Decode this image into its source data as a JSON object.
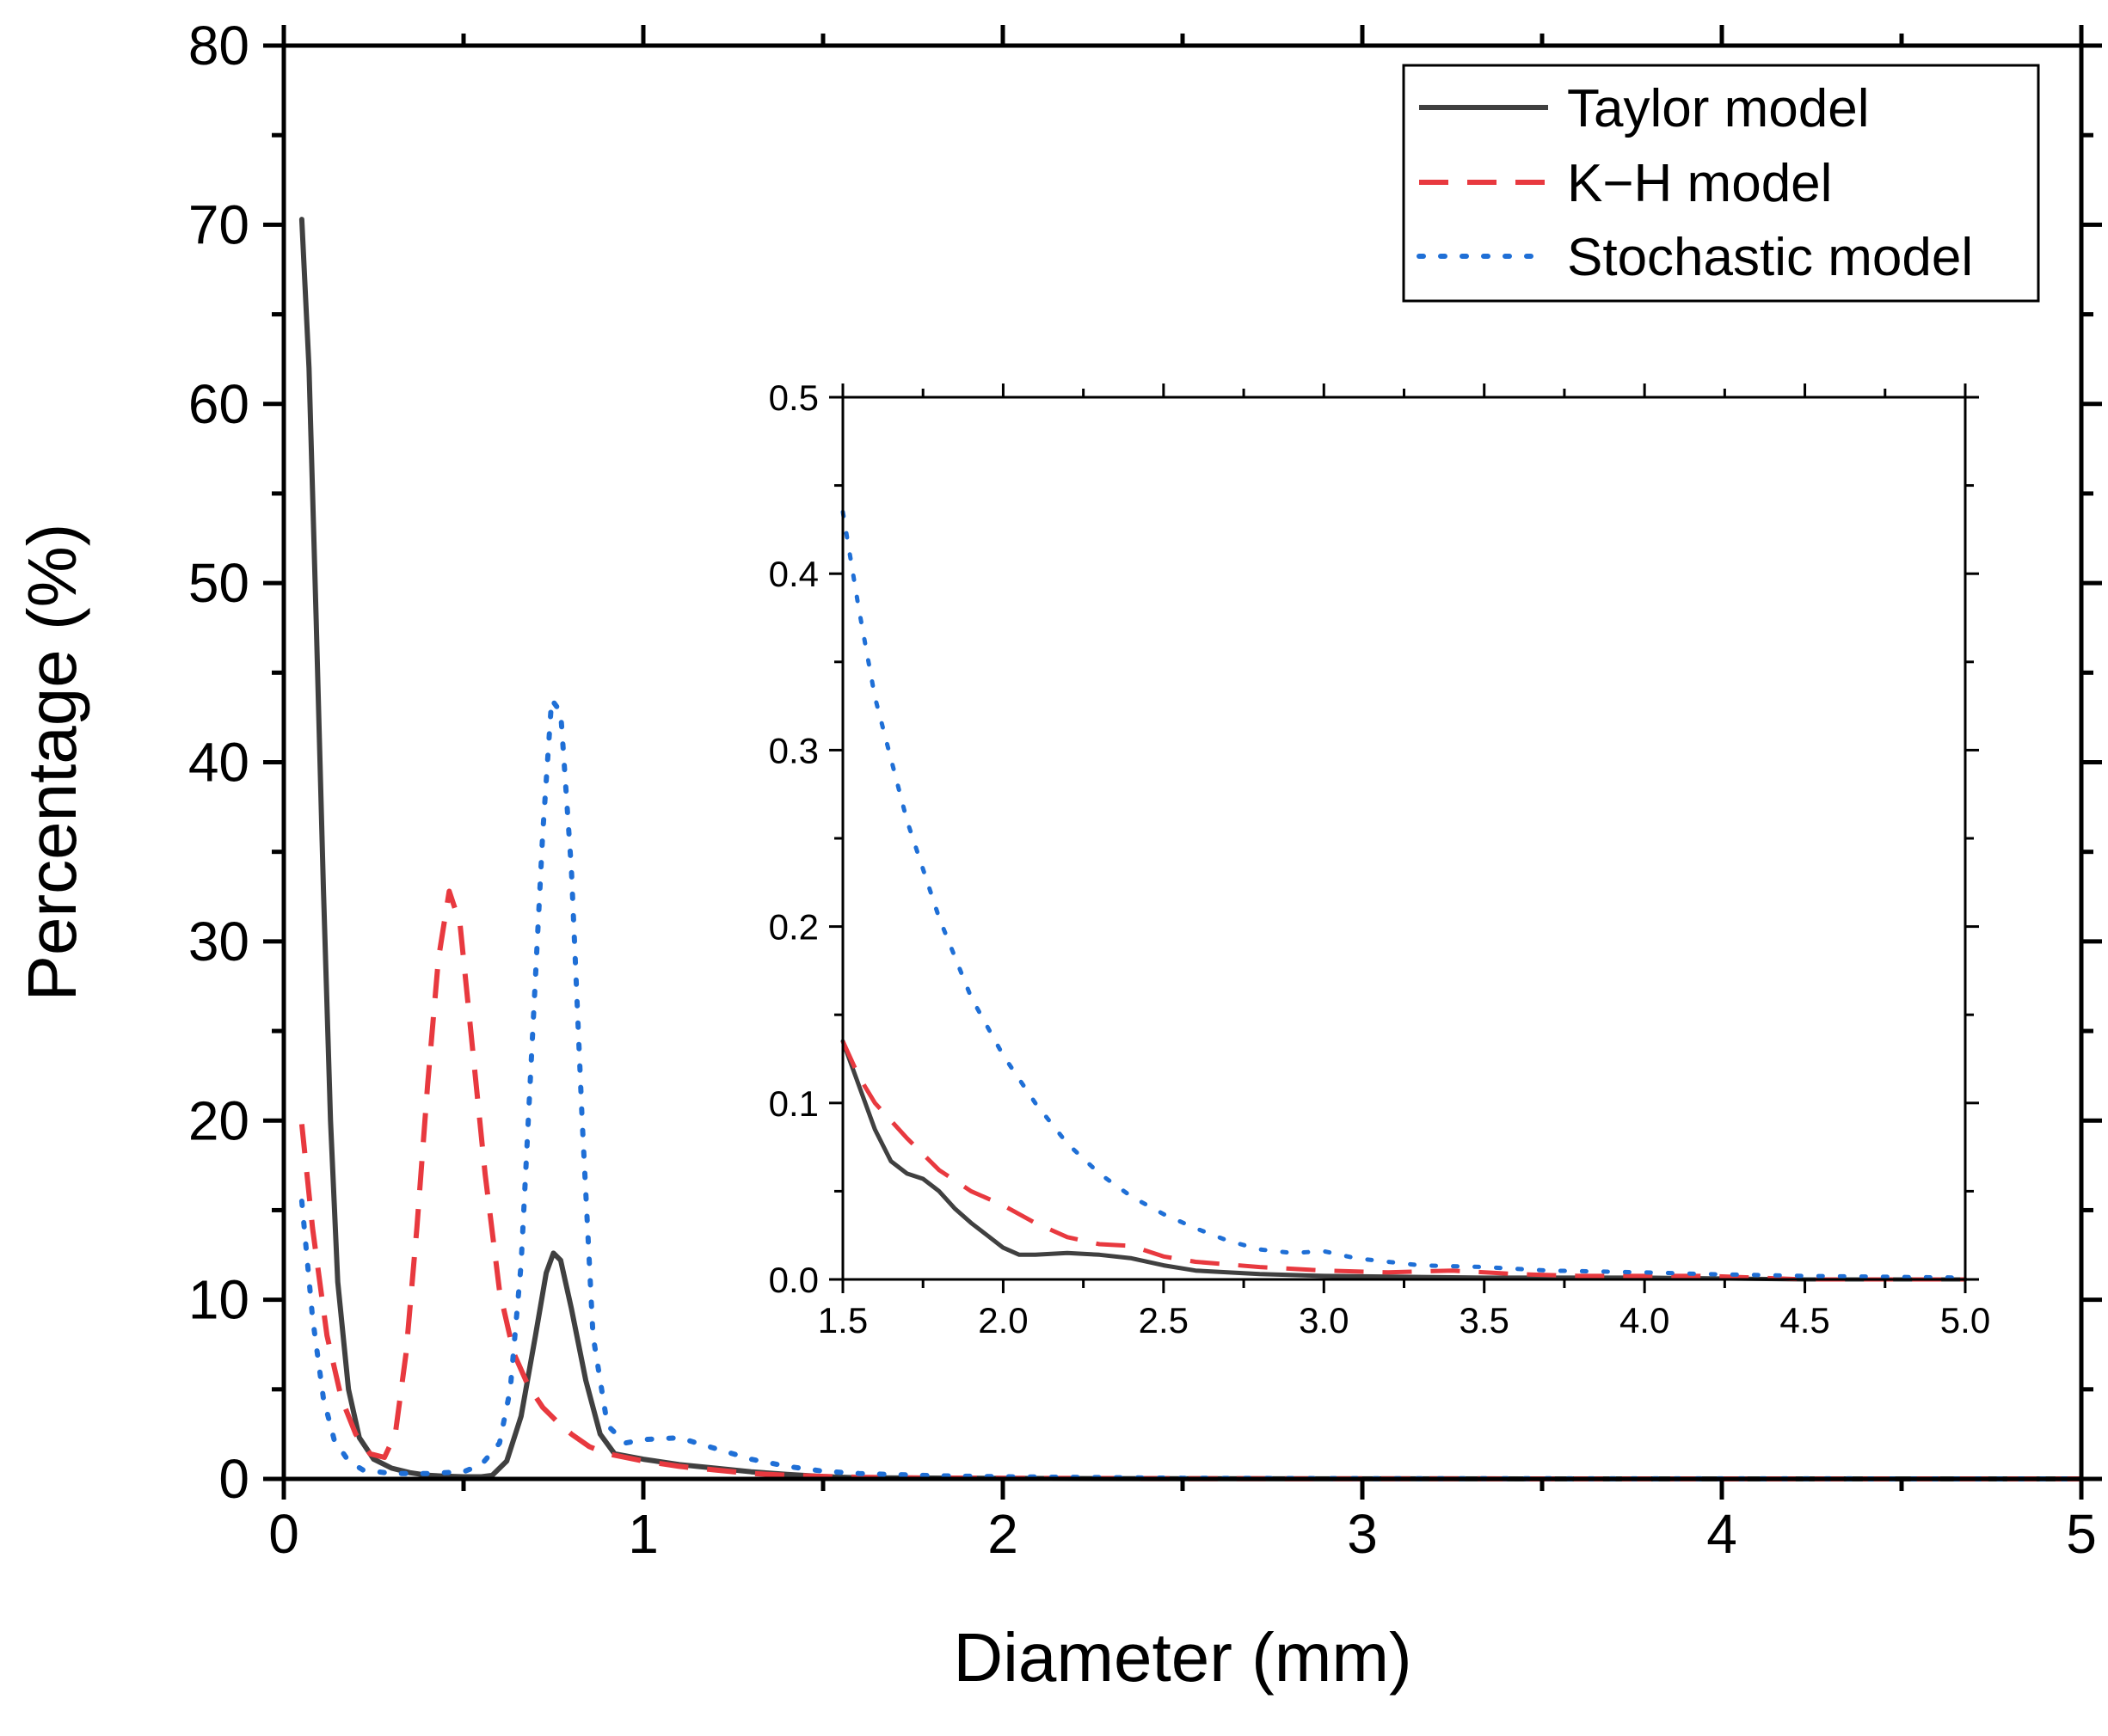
{
  "chart_data": [
    {
      "id": "main",
      "type": "line",
      "xlabel": "Diameter (mm)",
      "ylabel": "Percentage (%)",
      "xlim": [
        0,
        5
      ],
      "ylim": [
        0,
        80
      ],
      "x_ticks": [
        0,
        1,
        2,
        3,
        4,
        5
      ],
      "x_tick_labels": [
        "0",
        "1",
        "2",
        "3",
        "4",
        "5"
      ],
      "y_ticks": [
        0,
        10,
        20,
        30,
        40,
        50,
        60,
        70,
        80
      ],
      "y_tick_labels": [
        "0",
        "10",
        "20",
        "30",
        "40",
        "50",
        "60",
        "70",
        "80"
      ],
      "grid": false,
      "legend": "top-right",
      "series": [
        {
          "name": "Taylor model",
          "color": "#404040",
          "style": "solid",
          "points": [
            [
              0.05,
              70.3
            ],
            [
              0.07,
              62
            ],
            [
              0.09,
              48
            ],
            [
              0.11,
              33
            ],
            [
              0.13,
              20
            ],
            [
              0.15,
              11
            ],
            [
              0.18,
              5
            ],
            [
              0.21,
              2.3
            ],
            [
              0.25,
              1.1
            ],
            [
              0.3,
              0.6
            ],
            [
              0.35,
              0.35
            ],
            [
              0.4,
              0.2
            ],
            [
              0.45,
              0.15
            ],
            [
              0.5,
              0.12
            ],
            [
              0.55,
              0.12
            ],
            [
              0.58,
              0.2
            ],
            [
              0.62,
              1
            ],
            [
              0.66,
              3.5
            ],
            [
              0.7,
              8
            ],
            [
              0.73,
              11.5
            ],
            [
              0.75,
              12.6
            ],
            [
              0.77,
              12.2
            ],
            [
              0.8,
              9.5
            ],
            [
              0.84,
              5.5
            ],
            [
              0.88,
              2.5
            ],
            [
              0.92,
              1.4
            ],
            [
              1.0,
              1.1
            ],
            [
              1.1,
              0.8
            ],
            [
              1.2,
              0.6
            ],
            [
              1.3,
              0.4
            ],
            [
              1.4,
              0.25
            ],
            [
              1.5,
              0.13
            ],
            [
              1.6,
              0.06
            ],
            [
              1.8,
              0.05
            ],
            [
              2.0,
              0.03
            ],
            [
              2.5,
              0.01
            ],
            [
              3.0,
              0.003
            ],
            [
              4.0,
              0.001
            ],
            [
              5.0,
              0.0
            ]
          ]
        },
        {
          "name": "K−H model",
          "color": "#e8393f",
          "style": "dashed",
          "points": [
            [
              0.05,
              19.8
            ],
            [
              0.08,
              14
            ],
            [
              0.12,
              8
            ],
            [
              0.16,
              4.5
            ],
            [
              0.2,
              2.5
            ],
            [
              0.24,
              1.4
            ],
            [
              0.28,
              1.2
            ],
            [
              0.31,
              2.5
            ],
            [
              0.34,
              7
            ],
            [
              0.37,
              14
            ],
            [
              0.4,
              22
            ],
            [
              0.43,
              29
            ],
            [
              0.46,
              32.8
            ],
            [
              0.49,
              31
            ],
            [
              0.52,
              25
            ],
            [
              0.56,
              17
            ],
            [
              0.6,
              10.5
            ],
            [
              0.64,
              7
            ],
            [
              0.68,
              5.2
            ],
            [
              0.72,
              4
            ],
            [
              0.76,
              3.2
            ],
            [
              0.8,
              2.5
            ],
            [
              0.85,
              1.8
            ],
            [
              0.9,
              1.4
            ],
            [
              1.0,
              1.0
            ],
            [
              1.1,
              0.7
            ],
            [
              1.2,
              0.5
            ],
            [
              1.3,
              0.3
            ],
            [
              1.4,
              0.2
            ],
            [
              1.5,
              0.14
            ],
            [
              1.6,
              0.09
            ],
            [
              1.8,
              0.05
            ],
            [
              2.0,
              0.04
            ],
            [
              2.5,
              0.015
            ],
            [
              3.0,
              0.006
            ],
            [
              4.0,
              0.002
            ],
            [
              5.0,
              0.0
            ]
          ]
        },
        {
          "name": "Stochastic model",
          "color": "#1f6fd6",
          "style": "dotted",
          "points": [
            [
              0.05,
              15.5
            ],
            [
              0.08,
              9
            ],
            [
              0.11,
              4.5
            ],
            [
              0.14,
              2.2
            ],
            [
              0.18,
              1
            ],
            [
              0.22,
              0.5
            ],
            [
              0.3,
              0.3
            ],
            [
              0.4,
              0.3
            ],
            [
              0.5,
              0.4
            ],
            [
              0.55,
              0.8
            ],
            [
              0.6,
              2
            ],
            [
              0.63,
              5
            ],
            [
              0.66,
              12
            ],
            [
              0.69,
              24
            ],
            [
              0.72,
              36
            ],
            [
              0.745,
              43.5
            ],
            [
              0.77,
              42.8
            ],
            [
              0.8,
              34
            ],
            [
              0.83,
              20
            ],
            [
              0.86,
              8
            ],
            [
              0.9,
              3
            ],
            [
              0.95,
              2
            ],
            [
              1.0,
              2.2
            ],
            [
              1.1,
              2.3
            ],
            [
              1.2,
              1.7
            ],
            [
              1.3,
              1.1
            ],
            [
              1.4,
              0.7
            ],
            [
              1.5,
              0.43
            ],
            [
              1.6,
              0.3
            ],
            [
              1.8,
              0.18
            ],
            [
              2.0,
              0.12
            ],
            [
              2.5,
              0.04
            ],
            [
              3.0,
              0.015
            ],
            [
              4.0,
              0.004
            ],
            [
              5.0,
              0.0
            ]
          ]
        }
      ]
    },
    {
      "id": "inset",
      "type": "line",
      "xlim": [
        1.5,
        5.0
      ],
      "ylim": [
        0,
        0.5
      ],
      "x_ticks": [
        1.5,
        2.0,
        2.5,
        3.0,
        3.5,
        4.0,
        4.5,
        5.0
      ],
      "x_tick_labels": [
        "1.5",
        "2.0",
        "2.5",
        "3.0",
        "3.5",
        "4.0",
        "4.5",
        "5.0"
      ],
      "y_ticks": [
        0,
        0.1,
        0.2,
        0.3,
        0.4,
        0.5
      ],
      "y_tick_labels": [
        "0.0",
        "0.1",
        "0.2",
        "0.3",
        "0.4",
        "0.5"
      ],
      "grid": false,
      "series": [
        {
          "name": "Taylor model",
          "color": "#404040",
          "style": "solid",
          "points": [
            [
              1.5,
              0.135
            ],
            [
              1.55,
              0.11
            ],
            [
              1.6,
              0.085
            ],
            [
              1.65,
              0.067
            ],
            [
              1.7,
              0.06
            ],
            [
              1.75,
              0.057
            ],
            [
              1.8,
              0.05
            ],
            [
              1.85,
              0.04
            ],
            [
              1.9,
              0.032
            ],
            [
              1.95,
              0.025
            ],
            [
              2.0,
              0.018
            ],
            [
              2.05,
              0.014
            ],
            [
              2.1,
              0.014
            ],
            [
              2.2,
              0.015
            ],
            [
              2.3,
              0.014
            ],
            [
              2.4,
              0.012
            ],
            [
              2.5,
              0.008
            ],
            [
              2.6,
              0.005
            ],
            [
              2.8,
              0.003
            ],
            [
              3.0,
              0.002
            ],
            [
              3.5,
              0.001
            ],
            [
              4.0,
              0.001
            ],
            [
              4.5,
              0.0
            ],
            [
              5.0,
              0.0
            ]
          ]
        },
        {
          "name": "K−H model",
          "color": "#e8393f",
          "style": "dashed",
          "points": [
            [
              1.5,
              0.135
            ],
            [
              1.55,
              0.115
            ],
            [
              1.6,
              0.1
            ],
            [
              1.7,
              0.08
            ],
            [
              1.8,
              0.062
            ],
            [
              1.9,
              0.05
            ],
            [
              2.0,
              0.042
            ],
            [
              2.1,
              0.032
            ],
            [
              2.2,
              0.024
            ],
            [
              2.3,
              0.02
            ],
            [
              2.4,
              0.019
            ],
            [
              2.5,
              0.013
            ],
            [
              2.6,
              0.01
            ],
            [
              2.8,
              0.007
            ],
            [
              3.0,
              0.005
            ],
            [
              3.2,
              0.004
            ],
            [
              3.4,
              0.005
            ],
            [
              3.6,
              0.003
            ],
            [
              3.8,
              0.002
            ],
            [
              4.0,
              0.002
            ],
            [
              4.2,
              0.002
            ],
            [
              4.5,
              0.0
            ],
            [
              5.0,
              0.0
            ]
          ]
        },
        {
          "name": "Stochastic model",
          "color": "#1f6fd6",
          "style": "dotted",
          "points": [
            [
              1.5,
              0.435
            ],
            [
              1.55,
              0.38
            ],
            [
              1.6,
              0.33
            ],
            [
              1.7,
              0.26
            ],
            [
              1.8,
              0.205
            ],
            [
              1.9,
              0.16
            ],
            [
              2.0,
              0.127
            ],
            [
              2.1,
              0.1
            ],
            [
              2.2,
              0.077
            ],
            [
              2.3,
              0.06
            ],
            [
              2.4,
              0.047
            ],
            [
              2.5,
              0.037
            ],
            [
              2.6,
              0.029
            ],
            [
              2.7,
              0.022
            ],
            [
              2.8,
              0.017
            ],
            [
              2.9,
              0.015
            ],
            [
              3.0,
              0.016
            ],
            [
              3.1,
              0.012
            ],
            [
              3.2,
              0.01
            ],
            [
              3.3,
              0.008
            ],
            [
              3.5,
              0.007
            ],
            [
              3.7,
              0.005
            ],
            [
              4.0,
              0.004
            ],
            [
              4.2,
              0.003
            ],
            [
              4.5,
              0.002
            ],
            [
              5.0,
              0.001
            ]
          ]
        }
      ]
    }
  ]
}
